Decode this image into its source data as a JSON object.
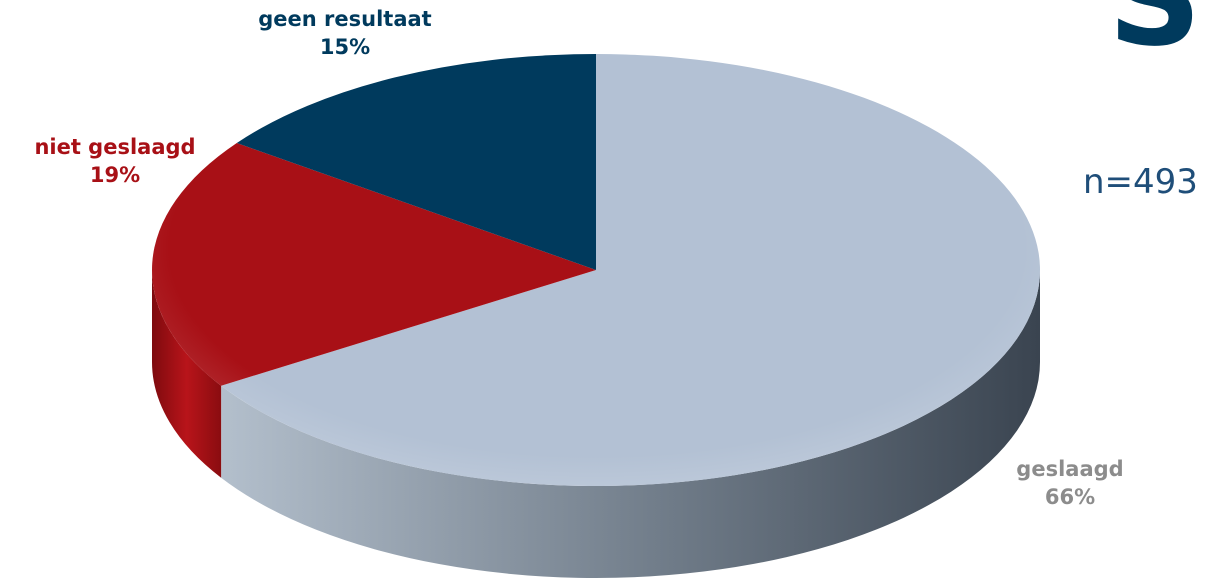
{
  "corner_text": "S",
  "sample_size": "n=493",
  "colors": {
    "geslaagd_top": "#b3c1d4",
    "niet_geslaagd_top": "#a81016",
    "geen_resultaat_top": "#003a5d",
    "label_geen": "#003a5d",
    "label_niet": "#a81016",
    "label_geslaagd": "#8c8c8c",
    "sample_size": "#1f4e79"
  },
  "chart_data": {
    "type": "pie",
    "title": "",
    "start_angle_deg": 0,
    "direction": "clockwise",
    "slices": [
      {
        "label": "geslaagd",
        "value": 66,
        "value_label": "66%"
      },
      {
        "label": "niet geslaagd",
        "value": 19,
        "value_label": "19%"
      },
      {
        "label": "geen resultaat",
        "value": 15,
        "value_label": "15%"
      }
    ],
    "annotations": [
      "n=493"
    ]
  }
}
